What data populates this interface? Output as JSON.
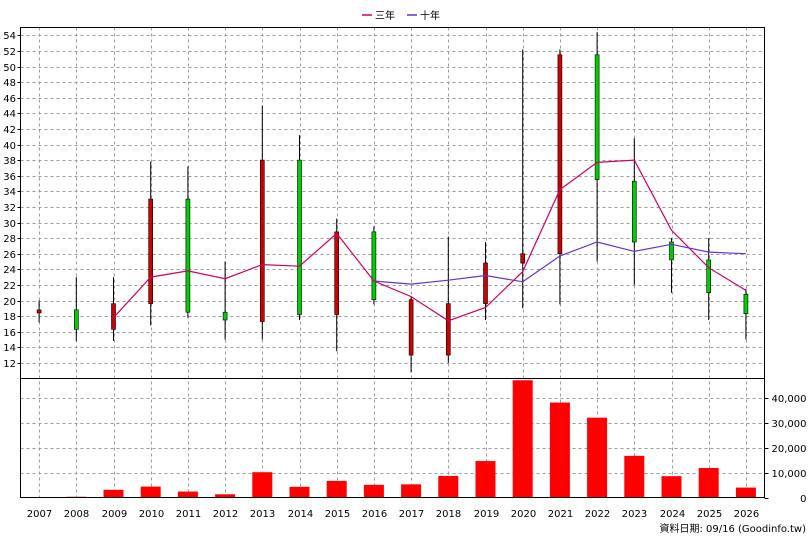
{
  "chart_data": {
    "type": "candlestick+line+bar",
    "legend": {
      "position": "top-center",
      "items": [
        {
          "name": "三年",
          "color": "#cc0066"
        },
        {
          "name": "十年",
          "color": "#6633cc"
        }
      ]
    },
    "years": [
      "2007",
      "2008",
      "2009",
      "2010",
      "2011",
      "2012",
      "2013",
      "2014",
      "2015",
      "2016",
      "2017",
      "2018",
      "2019",
      "2020",
      "2021",
      "2022",
      "2023",
      "2024",
      "2025",
      "2026"
    ],
    "price": {
      "ylim": [
        10,
        55
      ],
      "ticks": [
        12,
        14,
        16,
        18,
        20,
        22,
        24,
        26,
        28,
        30,
        32,
        34,
        36,
        38,
        40,
        42,
        44,
        46,
        48,
        50,
        52,
        54
      ],
      "up_color": "#00cc00",
      "down_color": "#cc0000",
      "candles": [
        {
          "year": "2007",
          "open": 18.8,
          "close": 18.4,
          "high": 20.0,
          "low": 17.2
        },
        {
          "year": "2008",
          "open": 16.3,
          "close": 18.8,
          "high": 23.0,
          "low": 14.8
        },
        {
          "year": "2009",
          "open": 19.6,
          "close": 16.3,
          "high": 23.0,
          "low": 14.8
        },
        {
          "year": "2010",
          "open": 33.0,
          "close": 19.6,
          "high": 37.8,
          "low": 16.8
        },
        {
          "year": "2011",
          "open": 18.5,
          "close": 33.0,
          "high": 37.2,
          "low": 17.8
        },
        {
          "year": "2012",
          "open": 17.5,
          "close": 18.5,
          "high": 25.0,
          "low": 15.0
        },
        {
          "year": "2013",
          "open": 38.0,
          "close": 17.3,
          "high": 45.0,
          "low": 15.0
        },
        {
          "year": "2014",
          "open": 18.2,
          "close": 38.0,
          "high": 41.2,
          "low": 17.5
        },
        {
          "year": "2015",
          "open": 28.8,
          "close": 18.2,
          "high": 30.5,
          "low": 13.5
        },
        {
          "year": "2016",
          "open": 20.1,
          "close": 28.8,
          "high": 29.5,
          "low": 19.5
        },
        {
          "year": "2017",
          "open": 20.1,
          "close": 13.0,
          "high": 20.5,
          "low": 10.8
        },
        {
          "year": "2018",
          "open": 19.6,
          "close": 13.0,
          "high": 28.2,
          "low": 12.0
        },
        {
          "year": "2019",
          "open": 24.8,
          "close": 19.6,
          "high": 27.5,
          "low": 17.5
        },
        {
          "year": "2020",
          "open": 26.0,
          "close": 24.8,
          "high": 52.2,
          "low": 19.0
        },
        {
          "year": "2021",
          "open": 51.5,
          "close": 26.0,
          "high": 52.2,
          "low": 19.5
        },
        {
          "year": "2022",
          "open": 35.5,
          "close": 51.5,
          "high": 54.4,
          "low": 25.0
        },
        {
          "year": "2023",
          "open": 27.5,
          "close": 35.3,
          "high": 40.8,
          "low": 22.0
        },
        {
          "year": "2024",
          "open": 25.2,
          "close": 27.5,
          "high": 28.0,
          "low": 21.0
        },
        {
          "year": "2025",
          "open": 21.0,
          "close": 25.2,
          "high": 28.0,
          "low": 17.5
        },
        {
          "year": "2026",
          "open": 18.3,
          "close": 20.8,
          "high": 21.5,
          "low": 15.0
        }
      ],
      "series": [
        {
          "name": "三年",
          "color": "#cc0066",
          "years": [
            "2008",
            "2009",
            "2010",
            "2011",
            "2012",
            "2013",
            "2014",
            "2015",
            "2016",
            "2017",
            "2018",
            "2019",
            "2020",
            "2021",
            "2022",
            "2023",
            "2024",
            "2025",
            "2026"
          ],
          "values": [
            null,
            17.8,
            23.0,
            23.8,
            22.8,
            24.6,
            24.4,
            28.6,
            22.5,
            20.5,
            17.4,
            19.1,
            23.7,
            34.2,
            37.7,
            38.0,
            29.0,
            24.2,
            21.3
          ]
        },
        {
          "name": "十年",
          "color": "#6633cc",
          "years": [
            "2016",
            "2017",
            "2018",
            "2019",
            "2020",
            "2021",
            "2022",
            "2023",
            "2024",
            "2025",
            "2026"
          ],
          "values": [
            22.5,
            22.1,
            22.6,
            23.2,
            22.4,
            25.7,
            27.5,
            26.3,
            27.2,
            26.2,
            26.0
          ]
        }
      ]
    },
    "volume": {
      "ylim": [
        0,
        48000
      ],
      "ticks": [
        0,
        10000,
        20000,
        30000,
        40000
      ],
      "tick_labels": [
        "0",
        "10,000",
        "20,000",
        "30,000",
        "40,000"
      ],
      "color": "#ff0000",
      "values": [
        0,
        300,
        3100,
        4400,
        2400,
        1300,
        10200,
        4300,
        6700,
        5100,
        5300,
        8700,
        14700,
        47300,
        38300,
        32200,
        16800,
        8600,
        11900,
        4000
      ]
    },
    "footer": "資料日期: 09/16  (Goodinfo.tw)"
  }
}
